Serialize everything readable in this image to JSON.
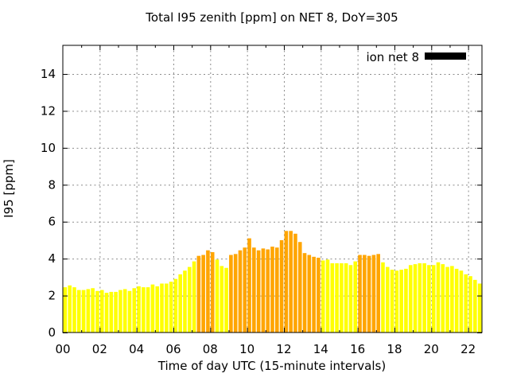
{
  "chart_data": {
    "type": "bar",
    "title": "Total I95 zenith [ppm] on NET 8, DoY=305",
    "xlabel": "Time of day UTC (15-minute intervals)",
    "ylabel": "I95 [ppm]",
    "legend": {
      "label": "ion net 8",
      "swatch_color": "#000000"
    },
    "x_start": "00:00",
    "interval_minutes": 15,
    "x_axis_hours": [
      0,
      22.75
    ],
    "ylim": [
      0,
      15.55
    ],
    "x_tick_positions": [
      0,
      2,
      4,
      6,
      8,
      10,
      12,
      14,
      16,
      18,
      20,
      22
    ],
    "x_tick_labels": [
      "00",
      "02",
      "04",
      "06",
      "08",
      "10",
      "12",
      "14",
      "16",
      "18",
      "20",
      "22"
    ],
    "y_tick_values": [
      0,
      2,
      4,
      6,
      8,
      10,
      12,
      14
    ],
    "grid": true,
    "legend_position": "top-right-inside",
    "color_map": {
      "Y": "#ffff00",
      "O": "#ffa500"
    },
    "colors": "YYYYYYYYYYYYYYYYYYYYYYYYYYYYYOOOOYYYOOOOOOOOOOOOOOOOOOOOYYYYYYYYOOOOOYYYYYYYYYYYYYYYYYYYYYY",
    "values": [
      2.45,
      2.55,
      2.45,
      2.3,
      2.3,
      2.35,
      2.4,
      2.25,
      2.3,
      2.15,
      2.2,
      2.2,
      2.3,
      2.35,
      2.25,
      2.4,
      2.5,
      2.45,
      2.45,
      2.6,
      2.5,
      2.65,
      2.65,
      2.75,
      2.9,
      3.15,
      3.35,
      3.55,
      3.85,
      4.15,
      4.2,
      4.45,
      4.35,
      3.95,
      3.6,
      3.5,
      4.2,
      4.25,
      4.45,
      4.6,
      5.1,
      4.6,
      4.45,
      4.55,
      4.5,
      4.65,
      4.6,
      5.0,
      5.5,
      5.5,
      5.35,
      4.9,
      4.3,
      4.2,
      4.1,
      4.05,
      3.9,
      3.95,
      3.75,
      3.75,
      3.75,
      3.75,
      3.65,
      3.85,
      4.2,
      4.2,
      4.15,
      4.2,
      4.25,
      3.8,
      3.55,
      3.4,
      3.35,
      3.4,
      3.45,
      3.65,
      3.7,
      3.75,
      3.75,
      3.65,
      3.65,
      3.8,
      3.7,
      3.55,
      3.6,
      3.45,
      3.35,
      3.15,
      3.05,
      2.85,
      2.65
    ]
  }
}
